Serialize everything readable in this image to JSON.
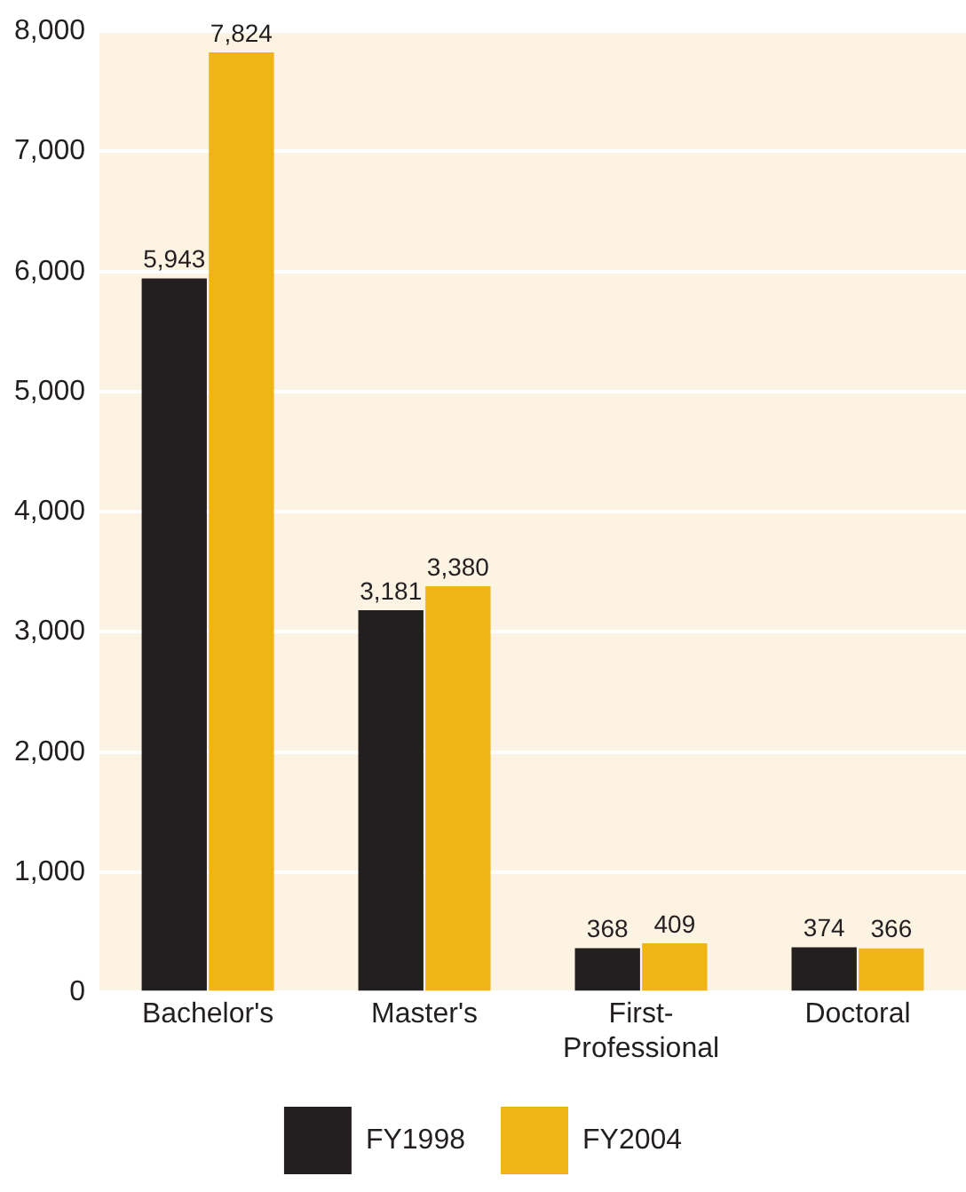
{
  "chart_data": {
    "type": "bar",
    "categories": [
      "Bachelor's",
      "Master's",
      "First-Professional",
      "Doctoral"
    ],
    "series": [
      {
        "name": "FY1998",
        "color": "#231f20",
        "values": [
          5943,
          3181,
          368,
          374
        ],
        "value_labels": [
          "5,943",
          "3,181",
          "368",
          "374"
        ]
      },
      {
        "name": "FY2004",
        "color": "#f0b416",
        "values": [
          7824,
          3380,
          409,
          366
        ],
        "value_labels": [
          "7,824",
          "3,380",
          "409",
          "366"
        ]
      }
    ],
    "ylim": [
      0,
      8000
    ],
    "yticks": [
      {
        "value": 0,
        "label": "0"
      },
      {
        "value": 1000,
        "label": "1,000"
      },
      {
        "value": 2000,
        "label": "2,000"
      },
      {
        "value": 3000,
        "label": "3,000"
      },
      {
        "value": 4000,
        "label": "4,000"
      },
      {
        "value": 5000,
        "label": "5,000"
      },
      {
        "value": 6000,
        "label": "6,000"
      },
      {
        "value": 7000,
        "label": "7,000"
      },
      {
        "value": 8000,
        "label": "8,000"
      }
    ],
    "grid": "y",
    "legend": "bottom"
  }
}
